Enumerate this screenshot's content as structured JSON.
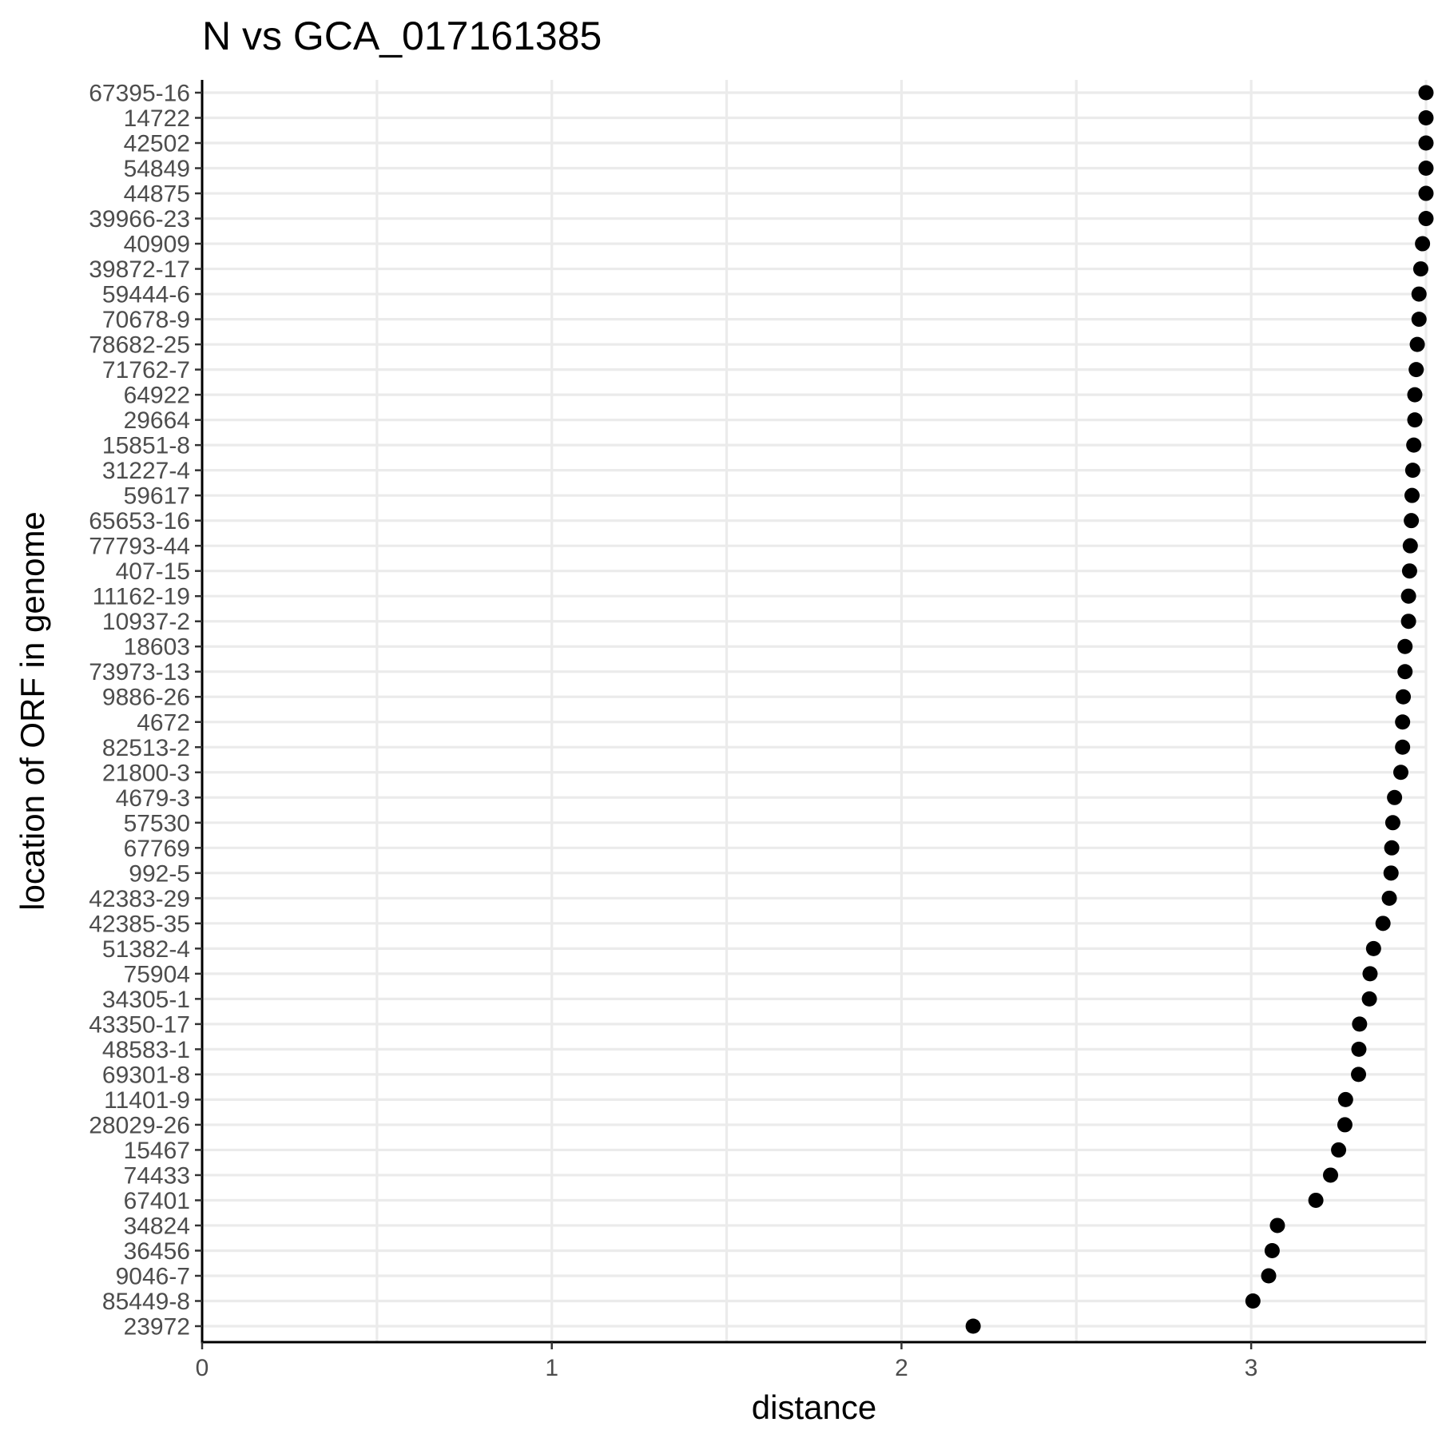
{
  "chart_data": {
    "type": "scatter",
    "title": "N vs GCA_017161385",
    "xlabel": "distance",
    "ylabel": "location of ORF in genome",
    "xlim": [
      0,
      3.5
    ],
    "xticks": [
      "0",
      "1",
      "2",
      "3"
    ],
    "grid": true,
    "legend": "none",
    "point_color": "#000000",
    "categories": [
      "67395-16",
      "14722",
      "42502",
      "54849",
      "44875",
      "39966-23",
      "40909",
      "39872-17",
      "59444-6",
      "70678-9",
      "78682-25",
      "71762-7",
      "64922",
      "29664",
      "15851-8",
      "31227-4",
      "59617",
      "65653-16",
      "77793-44",
      "407-15",
      "11162-19",
      "10937-2",
      "18603",
      "73973-13",
      "9886-26",
      "4672",
      "82513-2",
      "21800-3",
      "4679-3",
      "57530",
      "67769",
      "992-5",
      "42383-29",
      "42385-35",
      "51382-4",
      "75904",
      "34305-1",
      "43350-17",
      "48583-1",
      "69301-8",
      "11401-9",
      "28029-26",
      "15467",
      "74433",
      "67401",
      "34824",
      "36456",
      "9046-7",
      "85449-8",
      "23972"
    ],
    "values": [
      3.5,
      3.5,
      3.5,
      3.5,
      3.5,
      3.5,
      3.49,
      3.485,
      3.48,
      3.48,
      3.475,
      3.472,
      3.468,
      3.468,
      3.465,
      3.462,
      3.46,
      3.458,
      3.455,
      3.453,
      3.45,
      3.45,
      3.44,
      3.44,
      3.435,
      3.433,
      3.433,
      3.428,
      3.41,
      3.405,
      3.402,
      3.4,
      3.395,
      3.377,
      3.35,
      3.34,
      3.338,
      3.31,
      3.308,
      3.307,
      3.27,
      3.268,
      3.25,
      3.227,
      3.185,
      3.075,
      3.06,
      3.05,
      3.005,
      2.205
    ]
  }
}
